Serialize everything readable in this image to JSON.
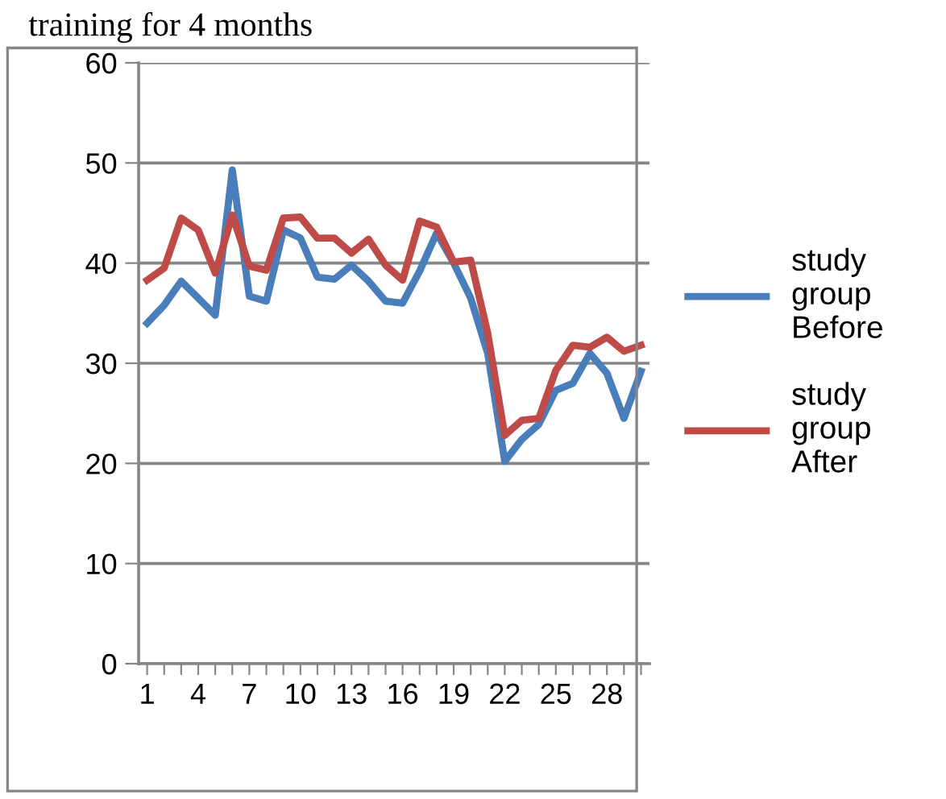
{
  "chart_data": {
    "type": "line",
    "title": "training for 4 months",
    "categories": [
      "1",
      null,
      null,
      "4",
      null,
      null,
      "7",
      null,
      null,
      "10",
      null,
      null,
      "13",
      null,
      null,
      "16",
      null,
      null,
      "19",
      null,
      null,
      "22",
      null,
      null,
      "25",
      null,
      null,
      "28",
      null,
      null
    ],
    "series": [
      {
        "name": "study group Before",
        "color": "#4a7ebb",
        "values": [
          34,
          35.8,
          38.2,
          36.5,
          34.8,
          49.3,
          36.7,
          36.2,
          43.3,
          42.5,
          38.6,
          38.4,
          39.8,
          38.2,
          36.2,
          36,
          39.2,
          43,
          40,
          36.5,
          31,
          20.2,
          22.4,
          23.9,
          27.3,
          28,
          31,
          29,
          24.5,
          29.2
        ]
      },
      {
        "name": "study group After",
        "color": "#be4b48",
        "values": [
          38.3,
          39.5,
          44.5,
          43.3,
          39,
          44.8,
          39.7,
          39.3,
          44.5,
          44.6,
          42.5,
          42.5,
          41,
          42.4,
          39.8,
          38.3,
          44.2,
          43.6,
          40.1,
          40.3,
          33,
          22.8,
          24.3,
          24.5,
          29.3,
          31.8,
          31.6,
          32.6,
          31.2,
          31.8
        ]
      }
    ],
    "ylim": [
      0,
      60
    ],
    "yticks": [
      0,
      10,
      20,
      30,
      40,
      50,
      60
    ],
    "grid": "y",
    "legend": "right",
    "marker": "none",
    "line_style": "solid"
  }
}
